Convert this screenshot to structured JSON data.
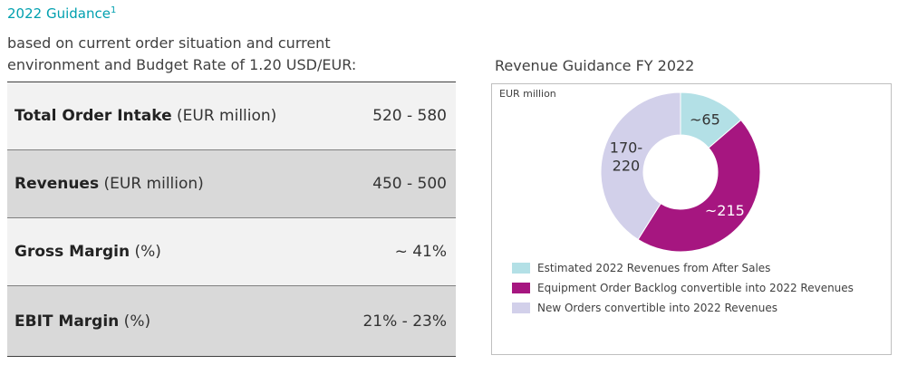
{
  "header": {
    "title": "2022 Guidance",
    "footnote_mark": "1",
    "subtitle_line1": "based on current order situation and current",
    "subtitle_line2": "environment and Budget Rate of 1.20 USD/EUR:"
  },
  "guidance_table": [
    {
      "label_bold": "Total Order Intake",
      "label_rest": " (EUR million)",
      "value": "520 - 580",
      "bg": "#f2f2f2"
    },
    {
      "label_bold": "Revenues",
      "label_rest": " (EUR million)",
      "value": "450 - 500",
      "bg": "#d9d9d9"
    },
    {
      "label_bold": "Gross Margin",
      "label_rest": " (%)",
      "value": "~ 41%",
      "bg": "#f2f2f2"
    },
    {
      "label_bold": "EBIT Margin",
      "label_rest": " (%)",
      "value": "21% - 23%",
      "bg": "#d9d9d9"
    }
  ],
  "chart_data": {
    "type": "pie",
    "title": "Revenue Guidance FY 2022",
    "unit_label": "EUR million",
    "slices": [
      {
        "name": "Estimated 2022 Revenues from After Sales",
        "value": 65,
        "label": "~65",
        "color": "#b3e0e6",
        "label_color": "#333333"
      },
      {
        "name": "Equipment Order Backlog convertible into 2022 Revenues",
        "value": 215,
        "label": "~215",
        "color": "#a61680",
        "label_color": "#ffffff"
      },
      {
        "name": "New Orders convertible into 2022 Revenues",
        "value": 195,
        "label": "170-\n220",
        "color": "#d2d0ea",
        "label_color": "#333333"
      }
    ],
    "legend_position": "bottom-left"
  }
}
